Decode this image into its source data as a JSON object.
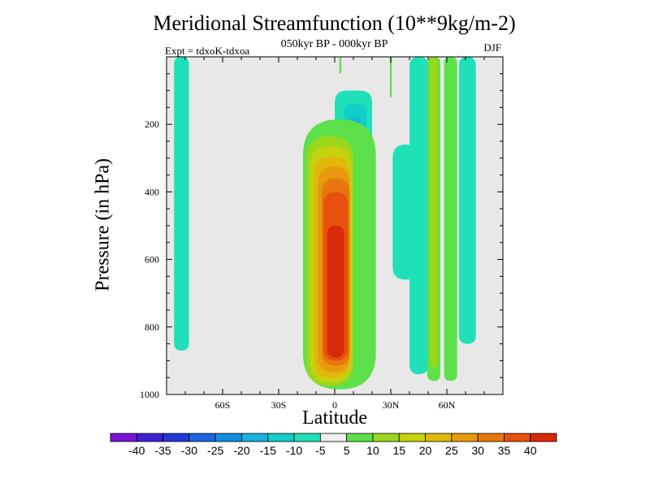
{
  "chart_data": {
    "type": "heatmap",
    "title": "Meridional Streamfunction (10**9kg/m-2)",
    "subtitle": "050kyr BP - 000kyr BP",
    "left_string": "Expt = tdxoK-tdxoa",
    "right_string": "DJF",
    "xlabel": "Latitude",
    "ylabel": "Pressure (in hPa)",
    "x_ticks": [
      "60S",
      "30S",
      "0",
      "30N",
      "60N"
    ],
    "x_tick_values": [
      -60,
      -30,
      0,
      30,
      60
    ],
    "xlim": [
      -90,
      90
    ],
    "y_ticks": [
      "200",
      "400",
      "600",
      "800",
      "1000"
    ],
    "y_tick_values": [
      200,
      400,
      600,
      800,
      1000
    ],
    "ylim": [
      0,
      1000
    ],
    "y_inverted": true,
    "background": "#e8e8e8",
    "colorbar": {
      "labels": [
        "-40",
        "-35",
        "-30",
        "-25",
        "-20",
        "-15",
        "-10",
        "-5",
        "5",
        "10",
        "15",
        "20",
        "25",
        "30",
        "35",
        "40"
      ],
      "colors": [
        "#7a12d8",
        "#3f20d2",
        "#2039d6",
        "#1c63de",
        "#0f8fe0",
        "#15b2dc",
        "#12cdc9",
        "#20e0b8",
        "#f0f0f0",
        "#5ee04a",
        "#9ad81c",
        "#c7d20e",
        "#e0b80c",
        "#e89a0e",
        "#e8770e",
        "#e8500e",
        "#d82a0a"
      ]
    },
    "positive_cell": {
      "lat_range": [
        -17,
        22
      ],
      "pressure_range": [
        185,
        985
      ],
      "max_value": 40,
      "levels": [
        {
          "value": 5,
          "color": "#5ee04a",
          "lat": [
            -17,
            22
          ],
          "p": [
            185,
            985
          ]
        },
        {
          "value": 10,
          "color": "#9ad81c",
          "lat": [
            -15,
            10
          ],
          "p": [
            235,
            975
          ]
        },
        {
          "value": 15,
          "color": "#c7d20e",
          "lat": [
            -13,
            9
          ],
          "p": [
            265,
            965
          ]
        },
        {
          "value": 20,
          "color": "#e0b80c",
          "lat": [
            -11,
            8
          ],
          "p": [
            295,
            950
          ]
        },
        {
          "value": 25,
          "color": "#e89a0e",
          "lat": [
            -9,
            8
          ],
          "p": [
            325,
            935
          ]
        },
        {
          "value": 30,
          "color": "#e8770e",
          "lat": [
            -7,
            8
          ],
          "p": [
            360,
            915
          ]
        },
        {
          "value": 35,
          "color": "#e8500e",
          "lat": [
            -6,
            7
          ],
          "p": [
            400,
            900
          ]
        },
        {
          "value": 40,
          "color": "#d82a0a",
          "lat": [
            -4,
            5
          ],
          "p": [
            500,
            890
          ]
        }
      ]
    },
    "negative_features": [
      {
        "value": -5,
        "color": "#20e0b8",
        "lat_center": -82,
        "lat_width": 8,
        "p": [
          0,
          870
        ]
      },
      {
        "value": -5,
        "color": "#20e0b8",
        "lat_center": 10,
        "lat_width": 20,
        "p": [
          100,
          340
        ]
      },
      {
        "value": -10,
        "color": "#12cdc9",
        "lat_center": 11,
        "lat_width": 12,
        "p": [
          140,
          280
        ]
      },
      {
        "value": -15,
        "color": "#15b2dc",
        "lat_center": 11,
        "lat_width": 5,
        "p": [
          180,
          240
        ]
      },
      {
        "value": -5,
        "color": "#20e0b8",
        "lat_center": 38,
        "lat_width": 14,
        "p": [
          260,
          660
        ]
      },
      {
        "value": -5,
        "color": "#20e0b8",
        "lat_center": 45,
        "lat_width": 10,
        "p": [
          0,
          940
        ]
      },
      {
        "value": -5,
        "color": "#20e0b8",
        "lat_center": 71,
        "lat_width": 9,
        "p": [
          0,
          850
        ]
      }
    ],
    "positive_features": [
      {
        "value": 5,
        "color": "#5ee04a",
        "lat_center": 53,
        "lat_width": 7,
        "p": [
          0,
          960
        ]
      },
      {
        "value": 10,
        "color": "#9ad81c",
        "lat_center": 53,
        "lat_width": 4,
        "p": [
          0,
          920
        ]
      },
      {
        "value": 5,
        "color": "#5ee04a",
        "lat_center": 62,
        "lat_width": 7,
        "p": [
          0,
          960
        ]
      },
      {
        "value": 5,
        "color": "#5ee04a",
        "lat_center": 3,
        "lat_width": 1,
        "p": [
          0,
          50
        ]
      },
      {
        "value": 5,
        "color": "#5ee04a",
        "lat_center": 30,
        "lat_width": 1,
        "p": [
          0,
          120
        ]
      }
    ]
  }
}
